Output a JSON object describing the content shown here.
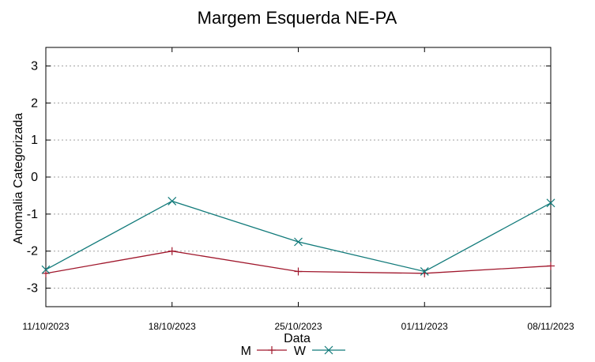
{
  "chart_data": {
    "type": "line",
    "title": "Margem Esquerda NE-PA",
    "xlabel": "Data",
    "ylabel": "Anomalia Categorizada",
    "categories": [
      "11/10/2023",
      "18/10/2023",
      "25/10/2023",
      "01/11/2023",
      "08/11/2023"
    ],
    "yticks": [
      3,
      2,
      1,
      0,
      -1,
      -2,
      -3
    ],
    "ylim": [
      -3.5,
      3.5
    ],
    "grid": true,
    "legend_position": "bottom-center",
    "series": [
      {
        "name": "M",
        "color": "#a0172c",
        "marker": "plus",
        "values": [
          -2.6,
          -2.0,
          -2.55,
          -2.6,
          -2.4
        ]
      },
      {
        "name": "W",
        "color": "#117a7a",
        "marker": "cross",
        "values": [
          -2.5,
          -0.65,
          -1.75,
          -2.55,
          -0.7
        ]
      }
    ]
  }
}
